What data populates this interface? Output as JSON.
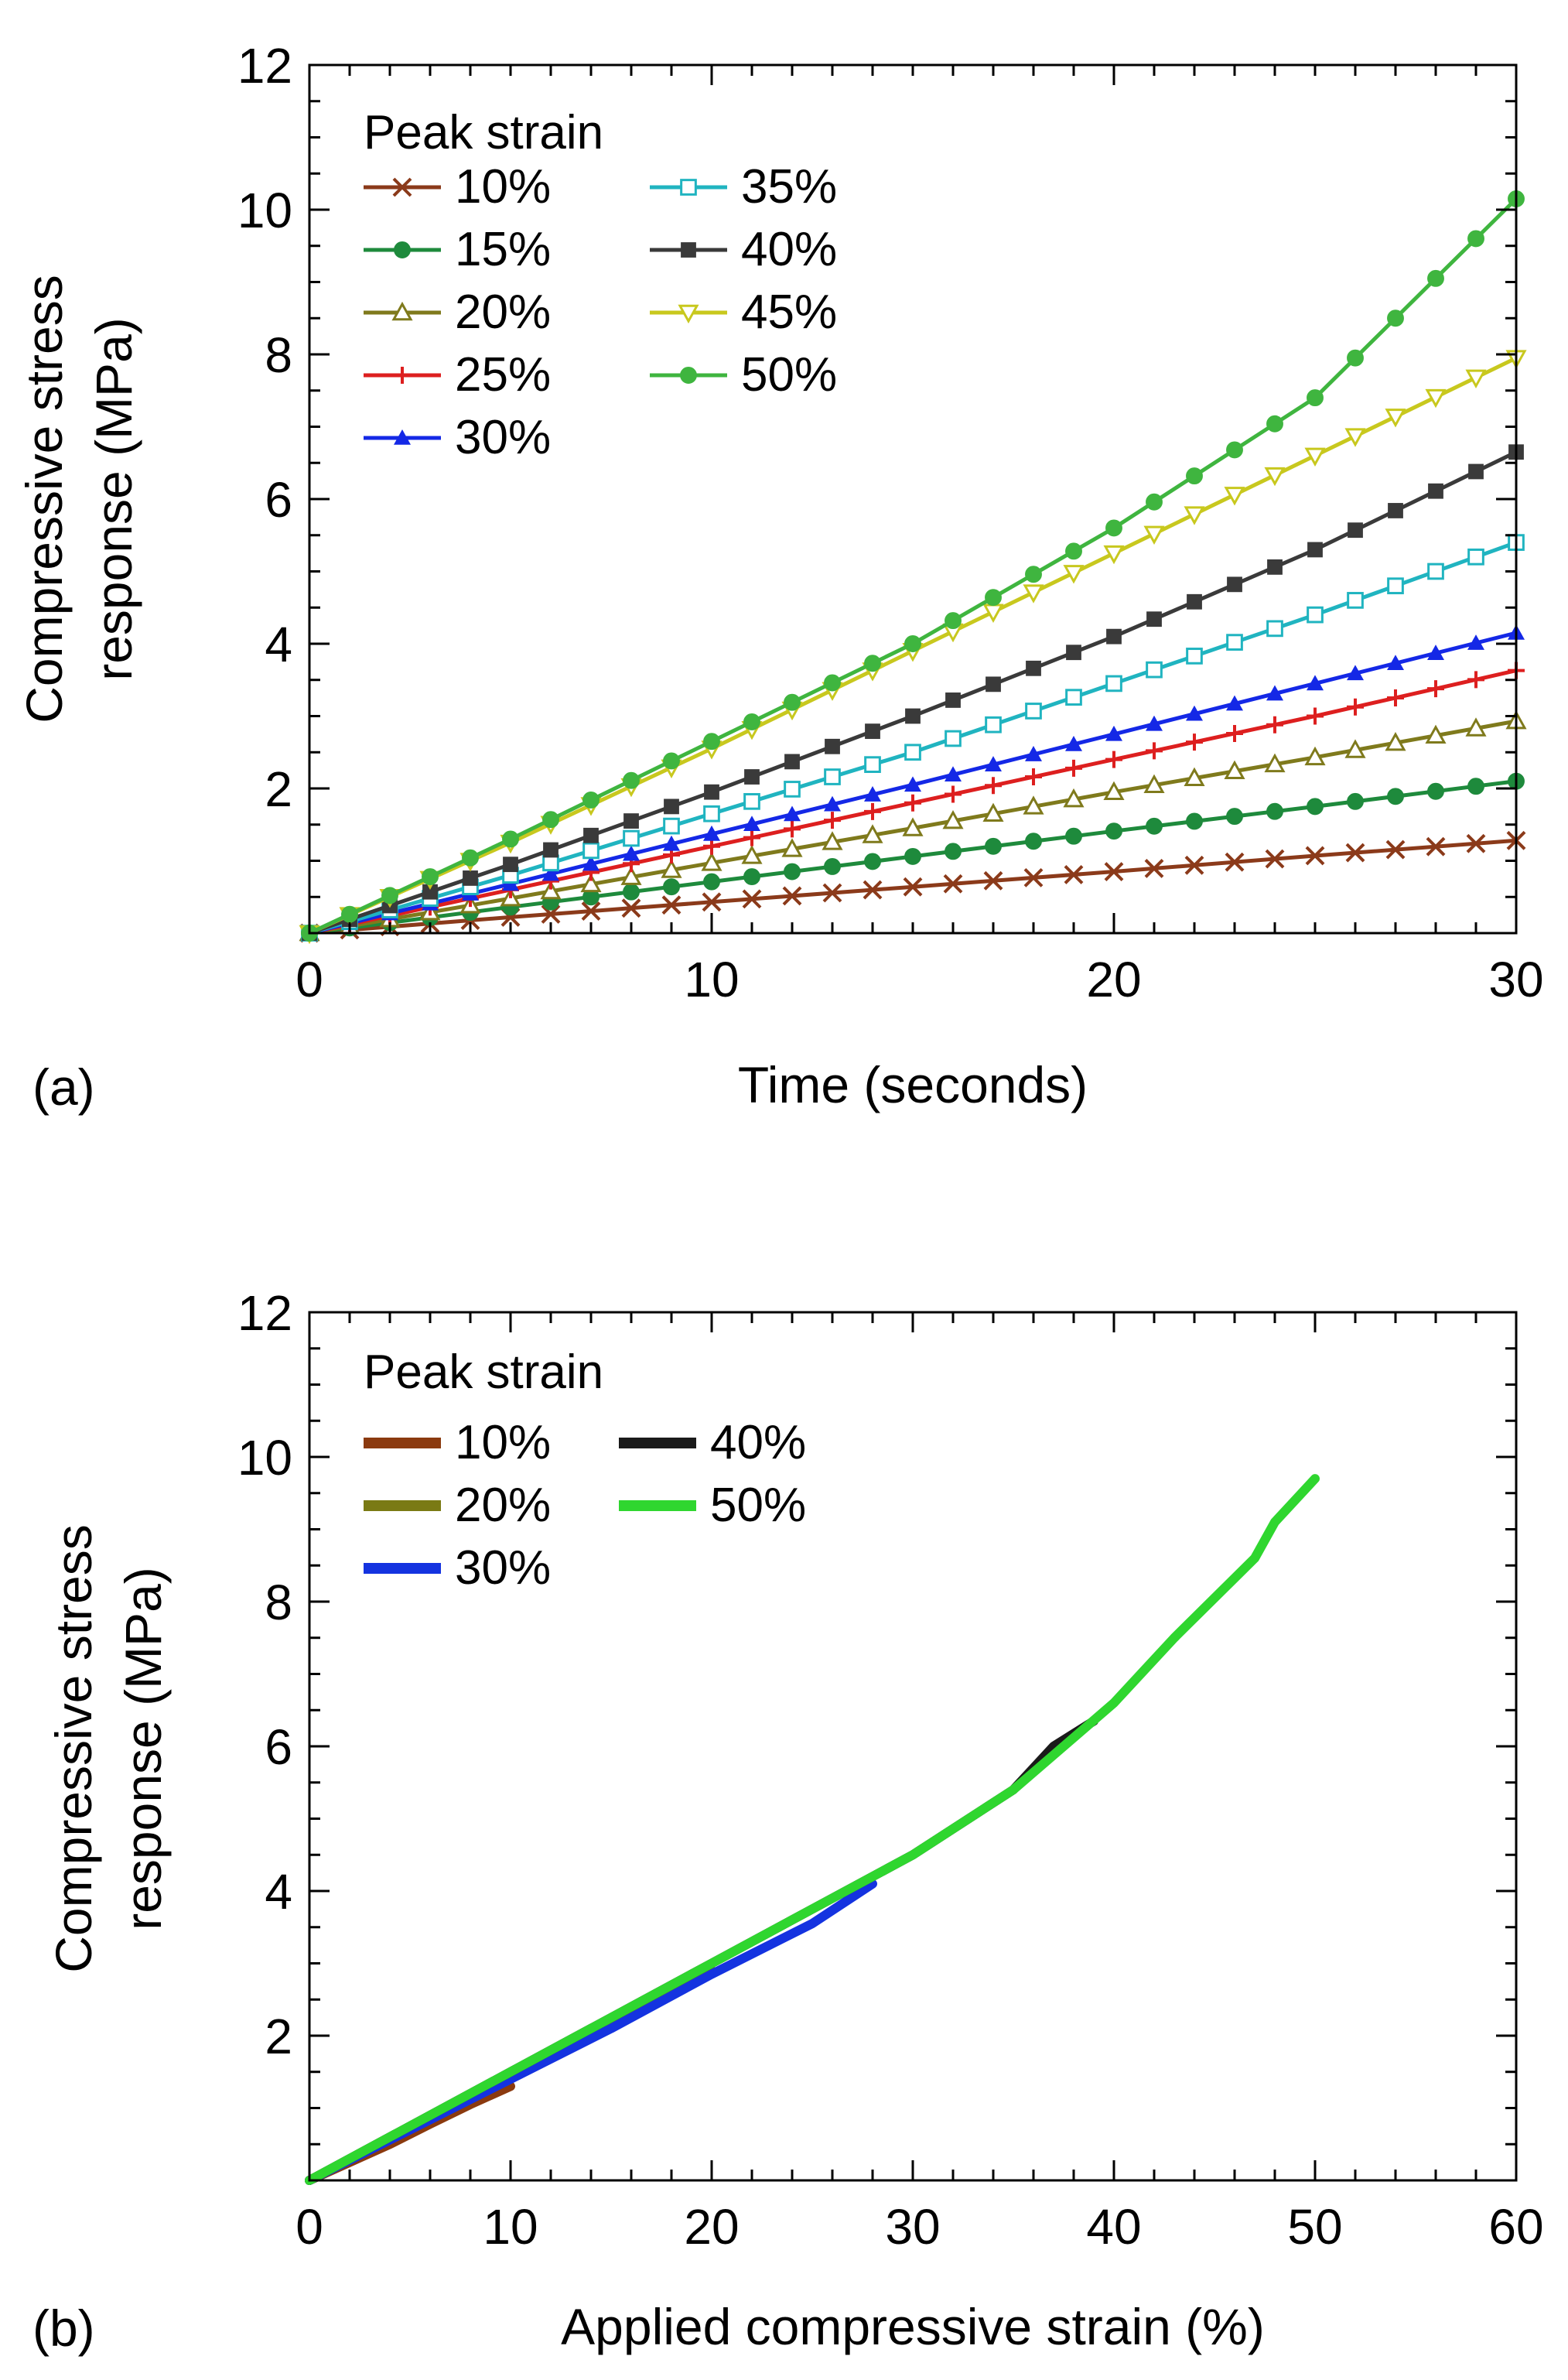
{
  "chart_data": [
    {
      "panel_label": "(a)",
      "type": "line",
      "title": "",
      "xlabel": "Time (seconds)",
      "ylabel_line1": "Compressive stress",
      "ylabel_line2": "response (MPa)",
      "xlim": [
        0,
        30
      ],
      "ylim": [
        0,
        12
      ],
      "x_ticks": [
        0,
        10,
        20,
        30
      ],
      "y_ticks": [
        2,
        4,
        6,
        8,
        10,
        12
      ],
      "legend_title": "Peak strain",
      "legend_position": "top-left",
      "grid": false,
      "series": [
        {
          "name": "10%",
          "color": "#8B3A1A",
          "marker": "x",
          "x": [
            0,
            5,
            10,
            15,
            20,
            25,
            30
          ],
          "values": [
            0.0,
            0.22,
            0.43,
            0.64,
            0.85,
            1.07,
            1.28
          ]
        },
        {
          "name": "15%",
          "color": "#1E8A3C",
          "marker": "circle",
          "x": [
            0,
            5,
            10,
            15,
            20,
            25,
            30
          ],
          "values": [
            0.0,
            0.36,
            0.71,
            1.06,
            1.41,
            1.75,
            2.1
          ]
        },
        {
          "name": "20%",
          "color": "#7F7A1C",
          "marker": "triangle-open",
          "x": [
            0,
            5,
            10,
            15,
            20,
            25,
            30
          ],
          "values": [
            0.0,
            0.48,
            0.97,
            1.45,
            1.95,
            2.43,
            2.93
          ]
        },
        {
          "name": "25%",
          "color": "#DD1F1F",
          "marker": "plus",
          "x": [
            0,
            5,
            10,
            15,
            20,
            25,
            30
          ],
          "values": [
            0.0,
            0.6,
            1.2,
            1.8,
            2.4,
            3.0,
            3.63
          ]
        },
        {
          "name": "30%",
          "color": "#1428E6",
          "marker": "triangle",
          "x": [
            0,
            5,
            10,
            15,
            20,
            25,
            30
          ],
          "values": [
            0.0,
            0.68,
            1.37,
            2.05,
            2.75,
            3.45,
            4.15
          ]
        },
        {
          "name": "35%",
          "color": "#20B4C0",
          "marker": "square-open",
          "x": [
            0,
            5,
            10,
            15,
            20,
            25,
            30
          ],
          "values": [
            0.0,
            0.8,
            1.65,
            2.5,
            3.45,
            4.4,
            5.4
          ]
        },
        {
          "name": "40%",
          "color": "#3A3A3A",
          "marker": "square",
          "x": [
            0,
            5,
            10,
            15,
            20,
            25,
            30
          ],
          "values": [
            0.0,
            0.95,
            1.95,
            3.0,
            4.1,
            5.3,
            6.65
          ]
        },
        {
          "name": "45%",
          "color": "#C8C81E",
          "marker": "triangle-down-open",
          "x": [
            0,
            5,
            10,
            15,
            20,
            25,
            30
          ],
          "values": [
            0.0,
            1.25,
            2.55,
            3.9,
            5.25,
            6.6,
            7.95
          ]
        },
        {
          "name": "50%",
          "color": "#3FB53F",
          "marker": "circle",
          "x": [
            0,
            5,
            10,
            15,
            20,
            25,
            30
          ],
          "values": [
            0.0,
            1.3,
            2.65,
            4.0,
            5.6,
            7.4,
            10.15
          ]
        }
      ]
    },
    {
      "panel_label": "(b)",
      "type": "line",
      "title": "",
      "xlabel": "Applied compressive strain (%)",
      "ylabel_line1": "Compressive stress",
      "ylabel_line2": "response (MPa)",
      "xlim": [
        0,
        60
      ],
      "ylim": [
        0,
        12
      ],
      "x_ticks": [
        0,
        10,
        20,
        30,
        40,
        50,
        60
      ],
      "y_ticks": [
        2,
        4,
        6,
        8,
        10,
        12
      ],
      "legend_title": "Peak strain",
      "legend_position": "top-left",
      "grid": false,
      "series": [
        {
          "name": "10%",
          "color": "#8B3A0F",
          "x": [
            0,
            2,
            4,
            6,
            8,
            10
          ],
          "values": [
            0.0,
            0.25,
            0.5,
            0.78,
            1.05,
            1.3
          ]
        },
        {
          "name": "20%",
          "color": "#7A7A14",
          "x": [
            0,
            5,
            10,
            15,
            20
          ],
          "values": [
            0.0,
            0.72,
            1.45,
            2.15,
            2.9
          ]
        },
        {
          "name": "30%",
          "color": "#1433E0",
          "x": [
            0,
            5,
            10,
            15,
            20,
            25,
            28
          ],
          "values": [
            0.0,
            0.7,
            1.4,
            2.1,
            2.85,
            3.55,
            4.1
          ]
        },
        {
          "name": "40%",
          "color": "#1A1A1A",
          "x": [
            0,
            10,
            20,
            25,
            30,
            35,
            37,
            39
          ],
          "values": [
            0.0,
            1.5,
            3.0,
            3.75,
            4.5,
            5.4,
            6.0,
            6.35
          ]
        },
        {
          "name": "50%",
          "color": "#2FD62F",
          "x": [
            0,
            10,
            20,
            30,
            35,
            40,
            43,
            47,
            48,
            50
          ],
          "values": [
            0.0,
            1.5,
            3.0,
            4.5,
            5.4,
            6.6,
            7.5,
            8.6,
            9.1,
            9.7
          ]
        }
      ]
    }
  ]
}
